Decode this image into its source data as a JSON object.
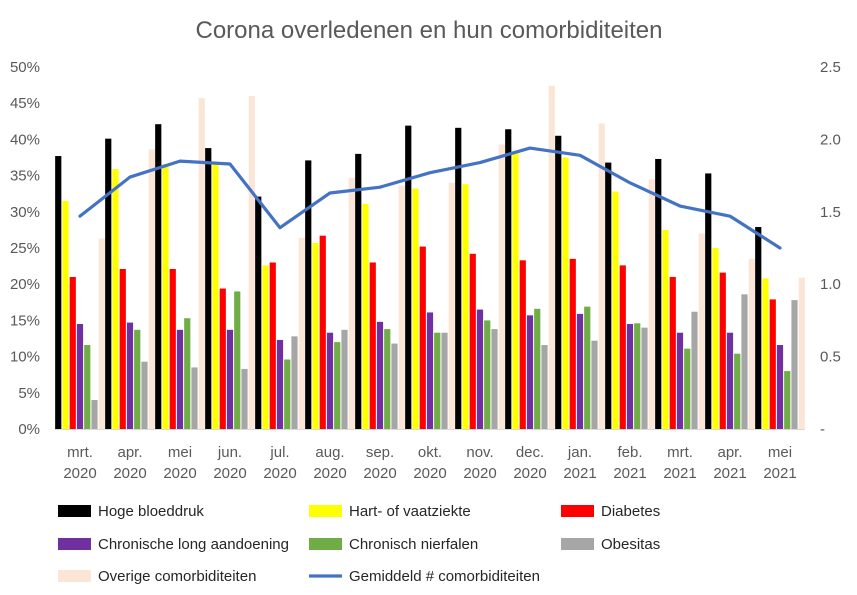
{
  "chart_data": {
    "type": "bar",
    "title": "Corona overledenen en hun comorbiditeiten",
    "categories": [
      [
        "mrt.",
        "2020"
      ],
      [
        "apr.",
        "2020"
      ],
      [
        "mei",
        "2020"
      ],
      [
        "jun.",
        "2020"
      ],
      [
        "jul.",
        "2020"
      ],
      [
        "aug.",
        "2020"
      ],
      [
        "sep.",
        "2020"
      ],
      [
        "okt.",
        "2020"
      ],
      [
        "nov.",
        "2020"
      ],
      [
        "dec.",
        "2020"
      ],
      [
        "jan.",
        "2021"
      ],
      [
        "feb.",
        "2021"
      ],
      [
        "mrt.",
        "2021"
      ],
      [
        "apr.",
        "2021"
      ],
      [
        "mei",
        "2021"
      ]
    ],
    "y_left": {
      "min": 0,
      "max": 50,
      "step": 5,
      "tick_labels": [
        "0%",
        "5%",
        "10%",
        "15%",
        "20%",
        "25%",
        "30%",
        "35%",
        "40%",
        "45%",
        "50%"
      ]
    },
    "y_right": {
      "min": 0,
      "max": 2.5,
      "step": 0.5,
      "tick_labels": [
        "-",
        "0.5",
        "1.0",
        "1.5",
        "2.0",
        "2.5"
      ]
    },
    "grid": false,
    "legend_position": "bottom",
    "series": [
      {
        "name": "Hoge bloeddruk",
        "color": "#000000",
        "axis": "left",
        "values": [
          37.7,
          40.1,
          42.1,
          38.8,
          32.1,
          37.1,
          38.0,
          41.9,
          41.6,
          41.4,
          40.5,
          36.8,
          37.3,
          35.3,
          27.9
        ]
      },
      {
        "name": "Hart- of vaatziekte",
        "color": "#ffff00",
        "axis": "left",
        "values": [
          31.5,
          35.9,
          36.6,
          36.9,
          22.6,
          25.7,
          31.1,
          33.2,
          33.8,
          38.1,
          37.5,
          32.8,
          27.5,
          25.0,
          20.8
        ]
      },
      {
        "name": "Diabetes",
        "color": "#ff0000",
        "axis": "left",
        "values": [
          21.0,
          22.1,
          22.1,
          19.4,
          23.0,
          26.7,
          23.0,
          25.2,
          24.2,
          23.3,
          23.5,
          22.6,
          21.0,
          21.6,
          17.9
        ]
      },
      {
        "name": "Chronische long aandoening",
        "color": "#7030a0",
        "axis": "left",
        "values": [
          14.5,
          14.7,
          13.7,
          13.7,
          12.3,
          13.3,
          14.8,
          16.1,
          16.5,
          15.7,
          15.9,
          14.5,
          13.3,
          13.3,
          11.6
        ]
      },
      {
        "name": "Chronisch nierfalen",
        "color": "#70ad47",
        "axis": "left",
        "values": [
          11.6,
          13.7,
          15.3,
          19.0,
          9.6,
          12.0,
          13.8,
          13.3,
          15.0,
          16.6,
          16.9,
          14.6,
          11.1,
          10.4,
          8.0
        ]
      },
      {
        "name": "Obesitas",
        "color": "#a6a6a6",
        "axis": "left",
        "values": [
          4.0,
          9.3,
          8.5,
          8.3,
          12.8,
          13.7,
          11.8,
          13.3,
          13.8,
          11.6,
          12.2,
          14.0,
          16.2,
          18.6,
          17.8
        ]
      },
      {
        "name": "Overige comorbiditeiten",
        "color": "#fbe5d6",
        "axis": "left",
        "values": [
          26.3,
          38.6,
          45.7,
          46.0,
          26.4,
          34.7,
          33.6,
          34.0,
          39.3,
          47.4,
          42.2,
          34.5,
          27.0,
          23.5,
          20.9
        ]
      },
      {
        "name": "Gemiddeld # comorbiditeiten",
        "color": "#4472c4",
        "axis": "right",
        "type": "line",
        "values": [
          1.47,
          1.74,
          1.85,
          1.83,
          1.39,
          1.63,
          1.67,
          1.77,
          1.84,
          1.94,
          1.89,
          1.7,
          1.54,
          1.47,
          1.25
        ]
      }
    ]
  }
}
